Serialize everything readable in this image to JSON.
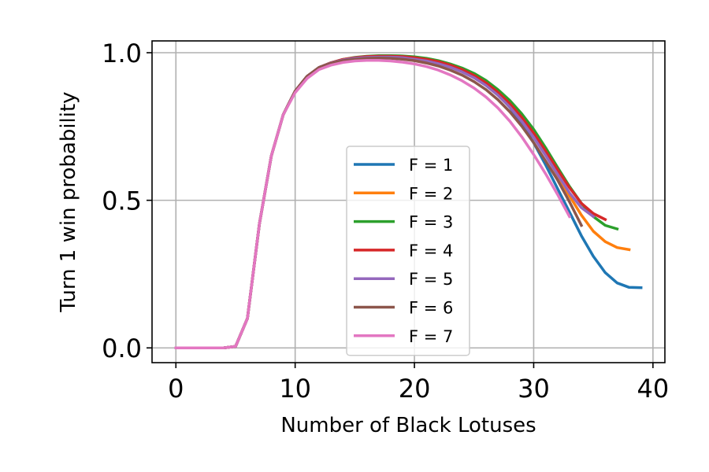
{
  "chart_data": {
    "type": "line",
    "xlabel": "Number of Black Lotuses",
    "ylabel": "Turn 1 win probability",
    "xlim": [
      -2,
      41
    ],
    "ylim": [
      -0.05,
      1.04
    ],
    "xticks": [
      0,
      10,
      20,
      30,
      40
    ],
    "yticks": [
      0.0,
      0.5,
      1.0
    ],
    "x_tick_labels": [
      "0",
      "10",
      "20",
      "30",
      "40"
    ],
    "y_tick_labels": [
      "0.0",
      "0.5",
      "1.0"
    ],
    "grid": true,
    "legend_position": "center",
    "series": [
      {
        "name": "F = 1",
        "color": "#1f77b4",
        "x": [
          0,
          1,
          2,
          3,
          4,
          5,
          6,
          7,
          8,
          9,
          10,
          11,
          12,
          13,
          14,
          15,
          16,
          17,
          18,
          19,
          20,
          21,
          22,
          23,
          24,
          25,
          26,
          27,
          28,
          29,
          30,
          31,
          32,
          33,
          34,
          35,
          36,
          37,
          38,
          39
        ],
        "y": [
          0,
          0,
          0,
          0,
          0,
          0.005,
          0.1,
          0.42,
          0.65,
          0.79,
          0.87,
          0.92,
          0.95,
          0.965,
          0.975,
          0.98,
          0.985,
          0.987,
          0.987,
          0.985,
          0.98,
          0.975,
          0.965,
          0.955,
          0.94,
          0.92,
          0.895,
          0.86,
          0.815,
          0.76,
          0.695,
          0.62,
          0.54,
          0.46,
          0.38,
          0.31,
          0.255,
          0.22,
          0.205,
          0.204
        ]
      },
      {
        "name": "F = 2",
        "color": "#ff7f0e",
        "x": [
          0,
          1,
          2,
          3,
          4,
          5,
          6,
          7,
          8,
          9,
          10,
          11,
          12,
          13,
          14,
          15,
          16,
          17,
          18,
          19,
          20,
          21,
          22,
          23,
          24,
          25,
          26,
          27,
          28,
          29,
          30,
          31,
          32,
          33,
          34,
          35,
          36,
          37,
          38
        ],
        "y": [
          0,
          0,
          0,
          0,
          0,
          0.005,
          0.1,
          0.42,
          0.65,
          0.79,
          0.87,
          0.92,
          0.95,
          0.965,
          0.975,
          0.982,
          0.986,
          0.988,
          0.988,
          0.987,
          0.983,
          0.977,
          0.968,
          0.958,
          0.944,
          0.925,
          0.9,
          0.868,
          0.828,
          0.78,
          0.72,
          0.655,
          0.585,
          0.515,
          0.45,
          0.395,
          0.36,
          0.34,
          0.333
        ]
      },
      {
        "name": "F = 3",
        "color": "#2ca02c",
        "x": [
          0,
          1,
          2,
          3,
          4,
          5,
          6,
          7,
          8,
          9,
          10,
          11,
          12,
          13,
          14,
          15,
          16,
          17,
          18,
          19,
          20,
          21,
          22,
          23,
          24,
          25,
          26,
          27,
          28,
          29,
          30,
          31,
          32,
          33,
          34,
          35,
          36,
          37
        ],
        "y": [
          0,
          0,
          0,
          0,
          0,
          0.005,
          0.1,
          0.42,
          0.65,
          0.79,
          0.87,
          0.92,
          0.95,
          0.966,
          0.977,
          0.984,
          0.988,
          0.99,
          0.99,
          0.989,
          0.986,
          0.981,
          0.973,
          0.962,
          0.948,
          0.93,
          0.906,
          0.875,
          0.838,
          0.793,
          0.74,
          0.678,
          0.612,
          0.547,
          0.49,
          0.445,
          0.415,
          0.403
        ]
      },
      {
        "name": "F = 4",
        "color": "#d62728",
        "x": [
          0,
          1,
          2,
          3,
          4,
          5,
          6,
          7,
          8,
          9,
          10,
          11,
          12,
          13,
          14,
          15,
          16,
          17,
          18,
          19,
          20,
          21,
          22,
          23,
          24,
          25,
          26,
          27,
          28,
          29,
          30,
          31,
          32,
          33,
          34,
          35,
          36
        ],
        "y": [
          0,
          0,
          0,
          0,
          0,
          0.005,
          0.1,
          0.42,
          0.65,
          0.79,
          0.87,
          0.92,
          0.95,
          0.966,
          0.977,
          0.983,
          0.987,
          0.988,
          0.988,
          0.987,
          0.983,
          0.978,
          0.97,
          0.958,
          0.943,
          0.923,
          0.898,
          0.866,
          0.827,
          0.781,
          0.727,
          0.667,
          0.604,
          0.543,
          0.49,
          0.455,
          0.435
        ]
      },
      {
        "name": "F = 5",
        "color": "#9467bd",
        "x": [
          0,
          1,
          2,
          3,
          4,
          5,
          6,
          7,
          8,
          9,
          10,
          11,
          12,
          13,
          14,
          15,
          16,
          17,
          18,
          19,
          20,
          21,
          22,
          23,
          24,
          25,
          26,
          27,
          28,
          29,
          30,
          31,
          32,
          33,
          34,
          35
        ],
        "y": [
          0,
          0,
          0,
          0,
          0,
          0.005,
          0.1,
          0.42,
          0.65,
          0.79,
          0.87,
          0.92,
          0.95,
          0.965,
          0.975,
          0.981,
          0.984,
          0.985,
          0.985,
          0.983,
          0.978,
          0.972,
          0.963,
          0.951,
          0.935,
          0.915,
          0.889,
          0.856,
          0.816,
          0.768,
          0.713,
          0.652,
          0.588,
          0.525,
          0.475,
          0.445
        ]
      },
      {
        "name": "F = 6",
        "color": "#8c564b",
        "x": [
          0,
          1,
          2,
          3,
          4,
          5,
          6,
          7,
          8,
          9,
          10,
          11,
          12,
          13,
          14,
          15,
          16,
          17,
          18,
          19,
          20,
          21,
          22,
          23,
          24,
          25,
          26,
          27,
          28,
          29,
          30,
          31,
          32,
          33,
          34
        ],
        "y": [
          0,
          0,
          0,
          0,
          0,
          0.005,
          0.1,
          0.42,
          0.65,
          0.79,
          0.87,
          0.92,
          0.95,
          0.964,
          0.973,
          0.978,
          0.981,
          0.982,
          0.981,
          0.978,
          0.973,
          0.965,
          0.955,
          0.941,
          0.924,
          0.902,
          0.875,
          0.841,
          0.8,
          0.751,
          0.695,
          0.633,
          0.569,
          0.495,
          0.415
        ]
      },
      {
        "name": "F = 7",
        "color": "#e377c2",
        "x": [
          0,
          1,
          2,
          3,
          4,
          5,
          6,
          7,
          8,
          9,
          10,
          11,
          12,
          13,
          14,
          15,
          16,
          17,
          18,
          19,
          20,
          21,
          22,
          23,
          24,
          25,
          26,
          27,
          28,
          29,
          30,
          31,
          32,
          33
        ],
        "y": [
          0,
          0,
          0,
          0,
          0,
          0.005,
          0.1,
          0.42,
          0.65,
          0.79,
          0.865,
          0.913,
          0.943,
          0.958,
          0.967,
          0.972,
          0.974,
          0.974,
          0.972,
          0.968,
          0.962,
          0.953,
          0.941,
          0.925,
          0.905,
          0.88,
          0.85,
          0.813,
          0.768,
          0.715,
          0.655,
          0.59,
          0.52,
          0.445
        ]
      }
    ]
  }
}
